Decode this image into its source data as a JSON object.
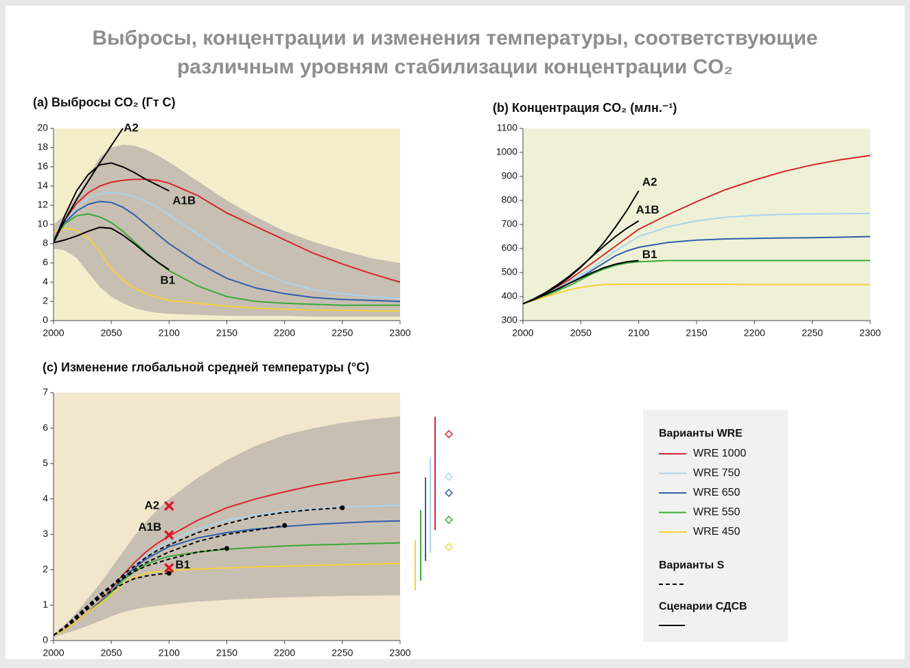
{
  "title": [
    "Выбросы, концентрации и изменения температуры, соответствующие",
    "различным уровням стабилизации концентрации CO₂"
  ],
  "legend": {
    "wre_title": "Варианты WRE",
    "s_title": "Варианты S",
    "sres_title": "Сценарии СДСВ"
  },
  "chart_data": [
    {
      "type": "line",
      "title": "(a) Выбросы CO₂ (Гт С)",
      "x": [
        2000,
        2010,
        2020,
        2030,
        2040,
        2050,
        2060,
        2070,
        2080,
        2090,
        2100,
        2125,
        2150,
        2175,
        2200,
        2225,
        2250,
        2275,
        2300
      ],
      "xlim": [
        2000,
        2300
      ],
      "xticks": [
        2000,
        2050,
        2100,
        2150,
        2200,
        2250,
        2300
      ],
      "ylim": [
        0,
        20
      ],
      "yticks": [
        0,
        2,
        4,
        6,
        8,
        10,
        12,
        14,
        16,
        18,
        20
      ],
      "band": {
        "color": "#c8bfb3",
        "upper": [
          10,
          11,
          13,
          15,
          17,
          18,
          18.3,
          18.2,
          17.8,
          17.2,
          16.5,
          14.5,
          12.5,
          10.8,
          9.3,
          8.2,
          7.3,
          6.5,
          6.0
        ],
        "lower": [
          7.5,
          7.3,
          6.5,
          5.0,
          3.5,
          2.5,
          1.8,
          1.3,
          1.0,
          0.8,
          0.7,
          0.6,
          0.5,
          0.5,
          0.5,
          0.4,
          0.4,
          0.4,
          0.4
        ]
      },
      "series": [
        {
          "color": "#d9232e",
          "values": [
            8.5,
            10.5,
            12.2,
            13.3,
            14.0,
            14.4,
            14.6,
            14.7,
            14.7,
            14.6,
            14.3,
            13.0,
            11.2,
            9.8,
            8.4,
            7.0,
            5.9,
            4.9,
            4.0
          ]
        },
        {
          "color": "#a8d5ee",
          "values": [
            8.5,
            10.3,
            11.8,
            12.7,
            13.2,
            13.3,
            13.2,
            12.9,
            12.4,
            11.8,
            11.0,
            9.0,
            7.0,
            5.3,
            4.0,
            3.2,
            2.8,
            2.5,
            2.3
          ]
        },
        {
          "color": "#2e5ea8",
          "values": [
            8.5,
            10.2,
            11.4,
            12.1,
            12.4,
            12.3,
            11.8,
            11.0,
            10.0,
            9.0,
            8.0,
            6.0,
            4.4,
            3.4,
            2.8,
            2.4,
            2.2,
            2.1,
            2.0
          ]
        },
        {
          "color": "#3aaa35",
          "values": [
            8.5,
            10.1,
            10.9,
            11.1,
            10.8,
            10.2,
            9.3,
            8.2,
            7.1,
            6.1,
            5.2,
            3.6,
            2.5,
            2.0,
            1.8,
            1.7,
            1.6,
            1.6,
            1.6
          ]
        },
        {
          "color": "#f5cf3a",
          "values": [
            9.2,
            9.6,
            9.4,
            8.6,
            7.2,
            5.4,
            4.2,
            3.4,
            2.8,
            2.4,
            2.1,
            1.8,
            1.5,
            1.3,
            1.2,
            1.1,
            1.1,
            1.0,
            1.0
          ]
        },
        {
          "name": "A2",
          "color": "#000000",
          "values": [
            8.1,
            10.5,
            12.6,
            14.5,
            16.4,
            18.2,
            20.0,
            null,
            null,
            null,
            null,
            null,
            null,
            null,
            null,
            null,
            null,
            null,
            null
          ]
        },
        {
          "name": "A1B",
          "color": "#000000",
          "values": [
            8.1,
            11.0,
            13.5,
            15.2,
            16.2,
            16.4,
            16.0,
            15.4,
            14.7,
            14.1,
            13.5,
            null,
            null,
            null,
            null,
            null,
            null,
            null,
            null
          ]
        },
        {
          "name": "B1",
          "color": "#000000",
          "values": [
            8.1,
            8.4,
            8.8,
            9.3,
            9.7,
            9.6,
            8.9,
            8.0,
            7.0,
            6.1,
            5.3,
            null,
            null,
            null,
            null,
            null,
            null,
            null,
            null
          ]
        }
      ]
    },
    {
      "type": "line",
      "title": "(b) Концентрация CO₂ (млн.⁻¹)",
      "x": [
        2000,
        2010,
        2020,
        2030,
        2040,
        2050,
        2060,
        2070,
        2080,
        2090,
        2100,
        2125,
        2150,
        2175,
        2200,
        2225,
        2250,
        2275,
        2300
      ],
      "xlim": [
        2000,
        2300
      ],
      "xticks": [
        2000,
        2050,
        2100,
        2150,
        2200,
        2250,
        2300
      ],
      "ylim": [
        300,
        1100
      ],
      "yticks": [
        300,
        400,
        500,
        600,
        700,
        800,
        900,
        1000,
        1100
      ],
      "series": [
        {
          "color": "#d9232e",
          "values": [
            370,
            390,
            415,
            440,
            470,
            505,
            540,
            575,
            610,
            645,
            680,
            740,
            795,
            845,
            885,
            920,
            948,
            970,
            987
          ]
        },
        {
          "color": "#a8d5ee",
          "values": [
            370,
            390,
            412,
            436,
            462,
            490,
            520,
            555,
            590,
            620,
            650,
            690,
            715,
            730,
            738,
            742,
            744,
            745,
            746
          ]
        },
        {
          "color": "#2e5ea8",
          "values": [
            370,
            388,
            408,
            430,
            455,
            480,
            510,
            540,
            570,
            590,
            605,
            625,
            635,
            640,
            642,
            644,
            645,
            647,
            650
          ]
        },
        {
          "color": "#3aaa35",
          "values": [
            370,
            387,
            405,
            425,
            445,
            470,
            495,
            515,
            530,
            540,
            545,
            550,
            550,
            550,
            550,
            550,
            550,
            550,
            550
          ]
        },
        {
          "color": "#f5cf3a",
          "values": [
            370,
            385,
            400,
            415,
            428,
            438,
            445,
            450,
            451,
            451,
            451,
            451,
            451,
            451,
            450,
            450,
            450,
            450,
            450
          ]
        },
        {
          "name": "A2",
          "color": "#000000",
          "values": [
            370,
            390,
            415,
            445,
            480,
            522,
            570,
            625,
            690,
            760,
            840,
            null,
            null,
            null,
            null,
            null,
            null,
            null,
            null
          ]
        },
        {
          "name": "A1B",
          "color": "#000000",
          "values": [
            370,
            392,
            418,
            450,
            485,
            525,
            568,
            610,
            650,
            685,
            715,
            null,
            null,
            null,
            null,
            null,
            null,
            null,
            null
          ]
        },
        {
          "name": "B1",
          "color": "#000000",
          "values": [
            370,
            388,
            410,
            432,
            455,
            478,
            500,
            520,
            535,
            545,
            550,
            null,
            null,
            null,
            null,
            null,
            null,
            null,
            null
          ]
        }
      ]
    },
    {
      "type": "line",
      "title": "(c) Изменение глобальной средней температуры (°C)",
      "x": [
        2000,
        2010,
        2020,
        2030,
        2040,
        2050,
        2060,
        2070,
        2080,
        2090,
        2100,
        2125,
        2150,
        2175,
        2200,
        2225,
        2250,
        2275,
        2300
      ],
      "xlim": [
        2000,
        2300
      ],
      "xticks": [
        2000,
        2050,
        2100,
        2150,
        2200,
        2250,
        2300
      ],
      "ylim": [
        0,
        7
      ],
      "yticks": [
        0,
        1,
        2,
        3,
        4,
        5,
        6,
        7
      ],
      "band": {
        "color": "#c8bfb3",
        "upper": [
          0.15,
          0.45,
          0.8,
          1.2,
          1.6,
          2.05,
          2.5,
          2.95,
          3.35,
          3.7,
          4.0,
          4.6,
          5.1,
          5.5,
          5.8,
          6.0,
          6.15,
          6.25,
          6.33
        ],
        "lower": [
          0.1,
          0.2,
          0.3,
          0.42,
          0.55,
          0.68,
          0.8,
          0.88,
          0.94,
          0.98,
          1.02,
          1.1,
          1.15,
          1.19,
          1.22,
          1.24,
          1.26,
          1.27,
          1.28
        ]
      },
      "series": [
        {
          "name": "WRE 1000",
          "color": "#d9232e",
          "values": [
            0.15,
            0.3,
            0.55,
            0.8,
            1.1,
            1.45,
            1.85,
            2.2,
            2.5,
            2.75,
            2.95,
            3.4,
            3.75,
            4.0,
            4.2,
            4.38,
            4.52,
            4.65,
            4.75
          ],
          "range": [
            3.12,
            6.32
          ],
          "diamond": 5.83
        },
        {
          "name": "WRE 750",
          "color": "#a8d5ee",
          "values": [
            0.15,
            0.3,
            0.55,
            0.8,
            1.08,
            1.4,
            1.8,
            2.1,
            2.4,
            2.6,
            2.8,
            3.15,
            3.4,
            3.55,
            3.65,
            3.72,
            3.77,
            3.8,
            3.82
          ],
          "range": [
            2.48,
            5.17
          ],
          "diamond": 4.63
        },
        {
          "name": "WRE 650",
          "color": "#2e5ea8",
          "values": [
            0.15,
            0.3,
            0.55,
            0.8,
            1.07,
            1.38,
            1.75,
            2.05,
            2.3,
            2.48,
            2.65,
            2.9,
            3.05,
            3.15,
            3.22,
            3.28,
            3.32,
            3.36,
            3.38
          ],
          "range": [
            2.25,
            4.61
          ],
          "diamond": 4.17
        },
        {
          "name": "WRE 550",
          "color": "#3aaa35",
          "values": [
            0.15,
            0.3,
            0.55,
            0.8,
            1.05,
            1.35,
            1.7,
            1.95,
            2.15,
            2.28,
            2.38,
            2.5,
            2.58,
            2.63,
            2.67,
            2.7,
            2.72,
            2.74,
            2.76
          ],
          "range": [
            1.69,
            3.68
          ],
          "diamond": 3.41
        },
        {
          "name": "WRE 450",
          "color": "#f5cf3a",
          "values": [
            0.15,
            0.3,
            0.55,
            0.8,
            1.03,
            1.3,
            1.6,
            1.8,
            1.9,
            1.95,
            1.98,
            2.02,
            2.05,
            2.08,
            2.1,
            2.12,
            2.14,
            2.16,
            2.18
          ],
          "range": [
            1.41,
            2.83
          ],
          "diamond": 2.64
        },
        {
          "color": "#000000",
          "style": "dashed",
          "end_marker": true,
          "values": [
            0.15,
            0.35,
            0.6,
            0.9,
            1.2,
            1.4,
            1.6,
            1.75,
            1.82,
            1.87,
            1.9,
            null,
            null,
            null,
            null,
            null,
            null,
            null,
            null
          ]
        },
        {
          "color": "#000000",
          "style": "dashed",
          "end_marker": true,
          "values": [
            0.15,
            0.4,
            0.65,
            0.95,
            1.25,
            1.5,
            1.75,
            1.95,
            2.1,
            2.2,
            2.3,
            2.5,
            2.6,
            null,
            null,
            null,
            null,
            null,
            null
          ]
        },
        {
          "color": "#000000",
          "style": "dashed",
          "end_marker": true,
          "values": [
            0.15,
            0.4,
            0.7,
            1.0,
            1.3,
            1.55,
            1.8,
            2.0,
            2.2,
            2.35,
            2.5,
            2.8,
            3.0,
            3.12,
            3.25,
            null,
            null,
            null,
            null
          ]
        },
        {
          "color": "#000000",
          "style": "dashed",
          "end_marker": true,
          "values": [
            0.15,
            0.4,
            0.7,
            1.0,
            1.3,
            1.55,
            1.85,
            2.1,
            2.35,
            2.55,
            2.7,
            3.05,
            3.3,
            3.5,
            3.62,
            3.7,
            3.75,
            null,
            null
          ]
        }
      ],
      "points": {
        "color": "#d7192b",
        "items": [
          {
            "name": "A2",
            "x": 2100,
            "value": 3.8
          },
          {
            "name": "A1B",
            "x": 2100,
            "value": 2.98
          },
          {
            "name": "B1",
            "x": 2100,
            "value": 2.05
          }
        ]
      }
    }
  ]
}
